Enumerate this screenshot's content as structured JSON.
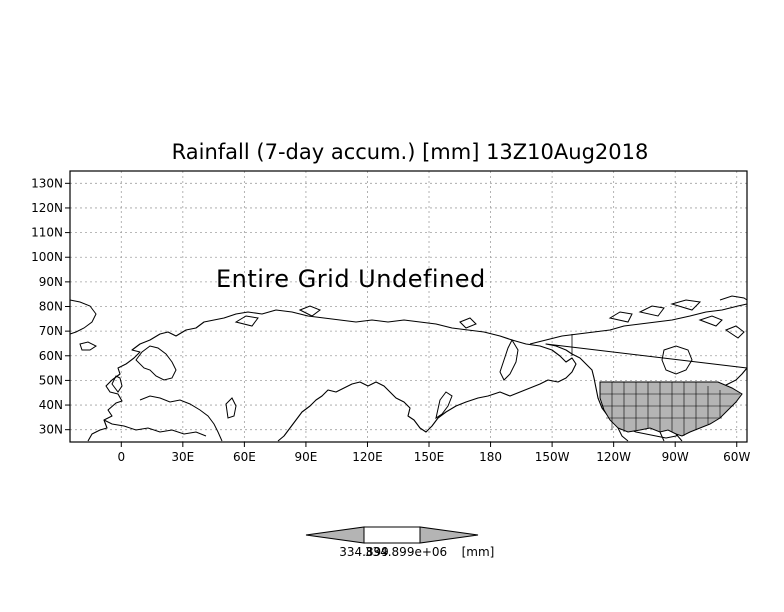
{
  "map": {
    "title": "Rainfall (7-day accum.) [mm] 13Z10Aug2018",
    "overlay_message": "Entire Grid Undefined",
    "variable": "Rainfall",
    "period": "7-day accum.",
    "units": "[mm]",
    "valid_time": "13Z10Aug2018",
    "projection": "latlon",
    "lon_range": [
      -25,
      305
    ],
    "lat_range": [
      25,
      135
    ],
    "grid": true,
    "grid_style": "dotted",
    "x_tick_labels": [
      {
        "lon": 0,
        "label": "0"
      },
      {
        "lon": 30,
        "label": "30E"
      },
      {
        "lon": 60,
        "label": "60E"
      },
      {
        "lon": 90,
        "label": "90E"
      },
      {
        "lon": 120,
        "label": "120E"
      },
      {
        "lon": 150,
        "label": "150E"
      },
      {
        "lon": 180,
        "label": "180"
      },
      {
        "lon": 210,
        "label": "150W"
      },
      {
        "lon": 240,
        "label": "120W"
      },
      {
        "lon": 270,
        "label": "90W"
      },
      {
        "lon": 300,
        "label": "60W"
      }
    ],
    "y_tick_labels": [
      {
        "lat": 30,
        "label": "30N"
      },
      {
        "lat": 40,
        "label": "40N"
      },
      {
        "lat": 50,
        "label": "50N"
      },
      {
        "lat": 60,
        "label": "60N"
      },
      {
        "lat": 70,
        "label": "70N"
      },
      {
        "lat": 80,
        "label": "80N"
      },
      {
        "lat": 90,
        "label": "90N"
      },
      {
        "lat": 100,
        "label": "100N"
      },
      {
        "lat": 110,
        "label": "110N"
      },
      {
        "lat": 120,
        "label": "120N"
      },
      {
        "lat": 130,
        "label": "130N"
      }
    ],
    "shaded_region": {
      "name": "contiguous United States",
      "fill": "#b4b4b4"
    },
    "colors": {
      "coastline": "#000000",
      "shade": "#b4b4b4",
      "grid": "#a0a0a0",
      "background": "#ffffff"
    }
  },
  "colorbar": {
    "left_label": "334.899",
    "right_label": "334.899e+06",
    "units_label": "[mm]",
    "colors": {
      "left_triangle": "#b4b4b4",
      "middle": "#ffffff",
      "right_triangle": "#b4b4b4"
    }
  }
}
